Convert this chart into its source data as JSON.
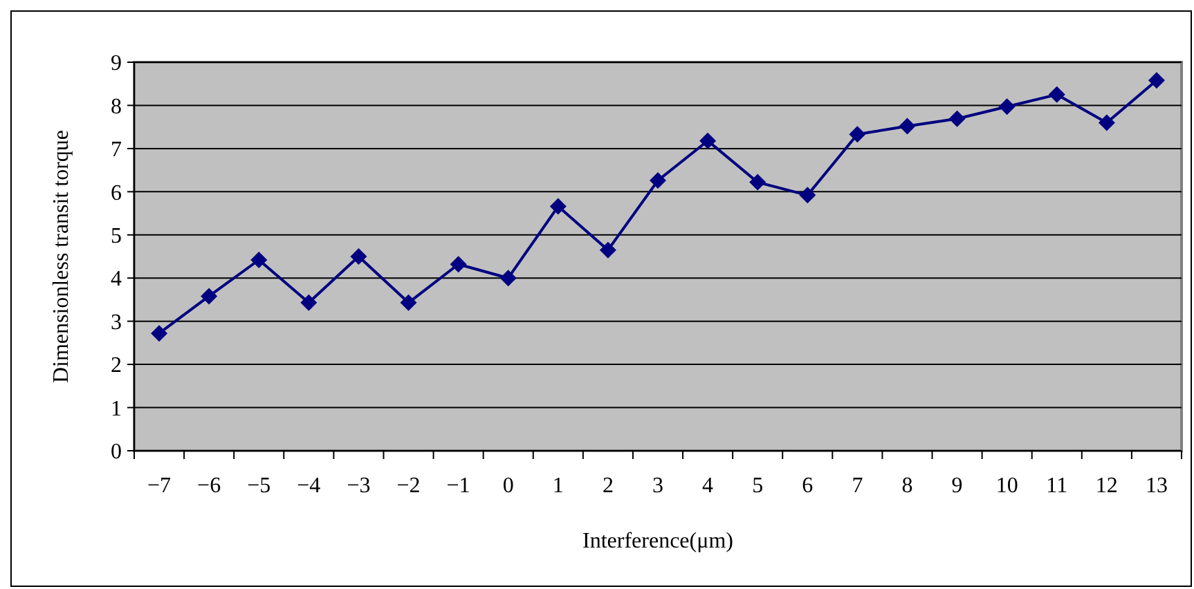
{
  "chart_data": {
    "type": "line",
    "xlabel": "Interference(μm)",
    "ylabel": "Dimensionless transit torque",
    "categories": [
      "−7",
      "−6",
      "−5",
      "−4",
      "−3",
      "−2",
      "−1",
      "0",
      "1",
      "2",
      "3",
      "4",
      "5",
      "6",
      "7",
      "8",
      "9",
      "10",
      "11",
      "12",
      "13"
    ],
    "series": [
      {
        "color": "#000080",
        "values": [
          2.72,
          3.58,
          4.42,
          3.43,
          4.5,
          3.43,
          4.32,
          4.0,
          5.66,
          4.65,
          6.26,
          7.18,
          6.22,
          5.92,
          7.33,
          7.52,
          7.69,
          7.97,
          8.25,
          7.6,
          8.58
        ]
      }
    ],
    "ylim": [
      0,
      9
    ],
    "yticks": [
      0,
      1,
      2,
      3,
      4,
      5,
      6,
      7,
      8,
      9
    ],
    "grid": "y",
    "marker": "diamond",
    "line_style": "solid"
  }
}
